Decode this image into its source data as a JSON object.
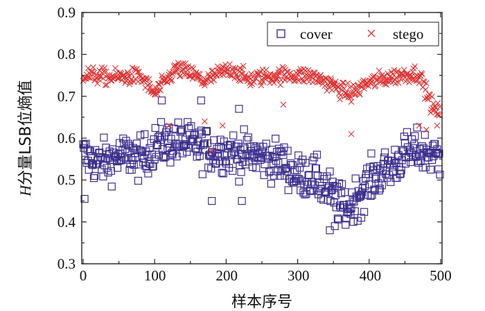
{
  "chart_data": {
    "type": "scatter",
    "title": "",
    "xlabel": "样本序号",
    "ylabel_italic": "H",
    "ylabel_rest": "分量LSB位熵值",
    "xlim": [
      0,
      500
    ],
    "ylim": [
      0.3,
      0.9
    ],
    "x_ticks": [
      "0",
      "100",
      "200",
      "300",
      "400",
      "500"
    ],
    "y_ticks": [
      "0.3",
      "0.4",
      "0.5",
      "0.6",
      "0.7",
      "0.8",
      "0.9"
    ],
    "legend_position": "top-right",
    "series": [
      {
        "name": "cover",
        "marker": "square",
        "color": "#3d2f8f",
        "samples": 500,
        "trend": [
          [
            0,
            0.56
          ],
          [
            20,
            0.54
          ],
          [
            40,
            0.55
          ],
          [
            60,
            0.56
          ],
          [
            80,
            0.55
          ],
          [
            100,
            0.58
          ],
          [
            120,
            0.59
          ],
          [
            140,
            0.59
          ],
          [
            160,
            0.58
          ],
          [
            180,
            0.57
          ],
          [
            200,
            0.57
          ],
          [
            220,
            0.56
          ],
          [
            240,
            0.56
          ],
          [
            260,
            0.55
          ],
          [
            280,
            0.54
          ],
          [
            300,
            0.51
          ],
          [
            320,
            0.51
          ],
          [
            340,
            0.48
          ],
          [
            360,
            0.44
          ],
          [
            370,
            0.43
          ],
          [
            390,
            0.48
          ],
          [
            410,
            0.51
          ],
          [
            430,
            0.53
          ],
          [
            450,
            0.56
          ],
          [
            470,
            0.57
          ],
          [
            490,
            0.56
          ],
          [
            500,
            0.55
          ]
        ],
        "spread": 0.045,
        "extremes": [
          [
            2,
            0.455
          ],
          [
            180,
            0.45
          ],
          [
            222,
            0.45
          ],
          [
            345,
            0.38
          ],
          [
            352,
            0.39
          ],
          [
            389,
            0.41
          ],
          [
            110,
            0.69
          ],
          [
            165,
            0.69
          ],
          [
            218,
            0.67
          ]
        ]
      },
      {
        "name": "stego",
        "marker": "x",
        "color": "#e03232",
        "samples": 500,
        "trend": [
          [
            0,
            0.752
          ],
          [
            40,
            0.745
          ],
          [
            80,
            0.748
          ],
          [
            100,
            0.705
          ],
          [
            115,
            0.735
          ],
          [
            130,
            0.765
          ],
          [
            150,
            0.755
          ],
          [
            170,
            0.735
          ],
          [
            190,
            0.755
          ],
          [
            210,
            0.765
          ],
          [
            230,
            0.74
          ],
          [
            260,
            0.748
          ],
          [
            290,
            0.752
          ],
          [
            320,
            0.748
          ],
          [
            340,
            0.735
          ],
          [
            360,
            0.715
          ],
          [
            375,
            0.705
          ],
          [
            395,
            0.73
          ],
          [
            420,
            0.742
          ],
          [
            450,
            0.752
          ],
          [
            470,
            0.755
          ],
          [
            480,
            0.71
          ],
          [
            490,
            0.67
          ],
          [
            500,
            0.66
          ]
        ],
        "spread": 0.018,
        "extremes": [
          [
            120,
            0.63
          ],
          [
            170,
            0.64
          ],
          [
            180,
            0.57
          ],
          [
            195,
            0.63
          ],
          [
            280,
            0.68
          ],
          [
            375,
            0.61
          ],
          [
            470,
            0.63
          ],
          [
            480,
            0.62
          ],
          [
            495,
            0.63
          ]
        ]
      }
    ]
  }
}
